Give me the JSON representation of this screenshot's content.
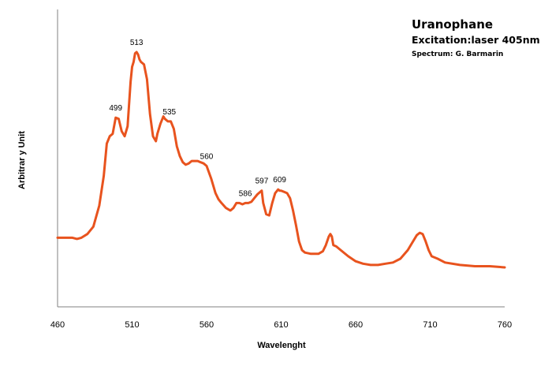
{
  "chart_data": {
    "type": "line",
    "title": "Uranophane",
    "subtitle": "Excitation:laser 405nm",
    "credit": "Spectrum: G. Barmarin",
    "xlabel": "Wavelenght",
    "ylabel": "Arbitrar y Unit",
    "xlim": [
      460,
      760
    ],
    "ylim": [
      0,
      100
    ],
    "xticks": [
      460,
      510,
      560,
      610,
      660,
      710,
      760
    ],
    "grid": false,
    "legend": "none",
    "line_color": "#E8531E",
    "series": [
      {
        "x": [
          460,
          465,
          470,
          473,
          476,
          480,
          484,
          488,
          491,
          493,
          495,
          497,
          499,
          501,
          503,
          505,
          507,
          509,
          510,
          511,
          512,
          513,
          514,
          515,
          516,
          517,
          518,
          520,
          522,
          524,
          526,
          527,
          529,
          531,
          532,
          534,
          536,
          538,
          540,
          542,
          544,
          546,
          548,
          550,
          552,
          554,
          556,
          558,
          560,
          563,
          566,
          568,
          570,
          573,
          576,
          578,
          580,
          582,
          584,
          586,
          588,
          590,
          592,
          594,
          596,
          597,
          598,
          600,
          602,
          604,
          606,
          608,
          609,
          610,
          612,
          614,
          616,
          618,
          620,
          622,
          624,
          626,
          630,
          635,
          638,
          640,
          642,
          643,
          644,
          645,
          647,
          650,
          655,
          660,
          665,
          670,
          675,
          680,
          685,
          690,
          695,
          698,
          701,
          703,
          705,
          707,
          709,
          711,
          715,
          720,
          730,
          740,
          750,
          760
        ],
        "y": [
          19,
          19,
          19,
          18.5,
          19,
          20.5,
          23.5,
          32,
          44,
          57,
          60,
          61,
          67.5,
          67,
          62,
          60,
          64,
          82,
          88,
          90,
          93.5,
          94,
          93,
          91,
          90,
          89.5,
          89,
          83,
          69,
          60,
          58,
          61,
          65,
          68,
          67,
          66,
          66,
          63,
          56,
          52,
          49.5,
          48.5,
          49,
          50,
          50,
          50,
          49.5,
          49,
          48,
          43,
          37,
          34.5,
          33,
          31,
          30,
          31,
          33,
          33,
          32.5,
          33,
          33,
          33.5,
          35,
          36.5,
          37.5,
          38,
          33,
          28.5,
          28,
          33,
          37,
          38.5,
          38,
          38,
          37.5,
          37,
          35,
          30,
          24,
          17.5,
          14,
          13,
          12.5,
          12.5,
          13.5,
          16,
          19.5,
          20.5,
          19.5,
          16,
          15.5,
          14,
          11.5,
          9.5,
          8.5,
          8,
          8,
          8.5,
          9,
          10.5,
          14,
          17,
          20,
          21,
          20.5,
          17.5,
          14,
          11.5,
          10.5,
          9,
          8,
          7.5,
          7.5,
          7
        ]
      }
    ],
    "annotations": [
      {
        "text": "499",
        "x": 499,
        "y": 67.5
      },
      {
        "text": "513",
        "x": 513,
        "y": 94
      },
      {
        "text": "535",
        "x": 535,
        "y": 66
      },
      {
        "text": "560",
        "x": 560,
        "y": 48
      },
      {
        "text": "586",
        "x": 586,
        "y": 33
      },
      {
        "text": "597",
        "x": 597,
        "y": 38
      },
      {
        "text": "609",
        "x": 609,
        "y": 38.5
      }
    ]
  }
}
